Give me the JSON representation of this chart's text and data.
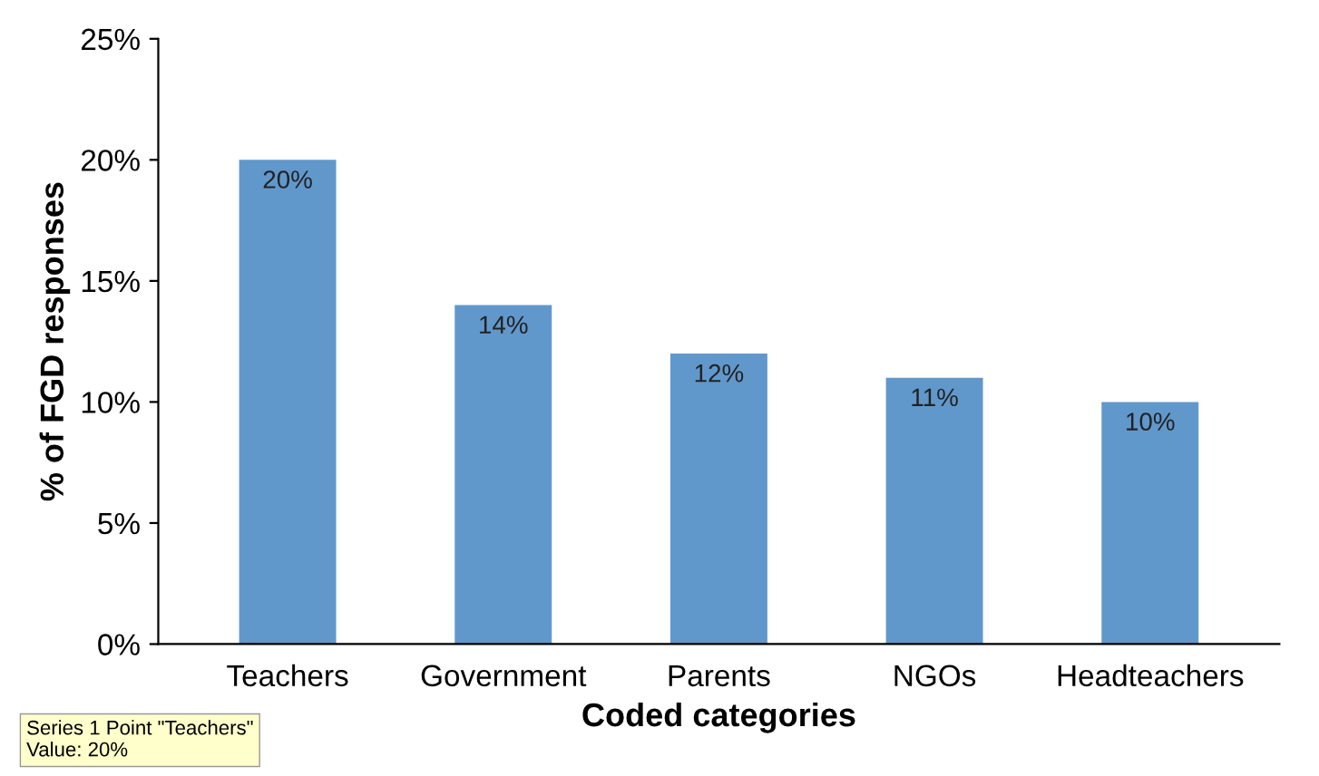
{
  "chart_data": {
    "type": "bar",
    "xlabel": "Coded categories",
    "ylabel": "% of FGD responses",
    "categories": [
      "Teachers",
      "Government",
      "Parents",
      "NGOs",
      "Headteachers"
    ],
    "values": [
      20,
      14,
      12,
      11,
      10
    ],
    "value_labels": [
      "20%",
      "14%",
      "12%",
      "11%",
      "10%"
    ],
    "color": "#6198cc",
    "ylim": [
      0,
      25
    ],
    "yticks": [
      {
        "value": 0,
        "label": "0%"
      },
      {
        "value": 5,
        "label": "5%"
      },
      {
        "value": 10,
        "label": "10%"
      },
      {
        "value": 15,
        "label": "15%"
      },
      {
        "value": 20,
        "label": "20%"
      },
      {
        "value": 25,
        "label": "25%"
      }
    ],
    "grid": false,
    "annotations": [
      "Series 1 Point \"Teachers\"\nValue: 20%"
    ]
  }
}
